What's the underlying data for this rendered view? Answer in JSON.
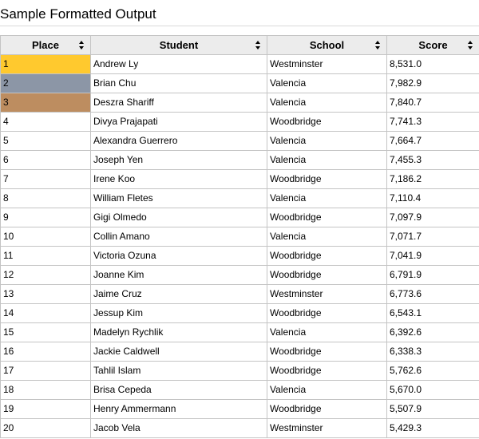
{
  "title": "Sample Formatted Output",
  "columns": [
    {
      "label": "Place"
    },
    {
      "label": "Student"
    },
    {
      "label": "School"
    },
    {
      "label": "Score"
    }
  ],
  "medal_colors": {
    "1": "#ffc92e",
    "2": "#8c96a6",
    "3": "#bd8d60"
  },
  "icons": {
    "sort": "sort-up-down-icon"
  },
  "rows": [
    {
      "place": "1",
      "student": "Andrew Ly",
      "school": "Westminster",
      "score": "8,531.0"
    },
    {
      "place": "2",
      "student": "Brian Chu",
      "school": "Valencia",
      "score": "7,982.9"
    },
    {
      "place": "3",
      "student": "Deszra Shariff",
      "school": "Valencia",
      "score": "7,840.7"
    },
    {
      "place": "4",
      "student": "Divya Prajapati",
      "school": "Woodbridge",
      "score": "7,741.3"
    },
    {
      "place": "5",
      "student": "Alexandra Guerrero",
      "school": "Valencia",
      "score": "7,664.7"
    },
    {
      "place": "6",
      "student": "Joseph Yen",
      "school": "Valencia",
      "score": "7,455.3"
    },
    {
      "place": "7",
      "student": "Irene Koo",
      "school": "Woodbridge",
      "score": "7,186.2"
    },
    {
      "place": "8",
      "student": "William Fletes",
      "school": "Valencia",
      "score": "7,110.4"
    },
    {
      "place": "9",
      "student": "Gigi Olmedo",
      "school": "Woodbridge",
      "score": "7,097.9"
    },
    {
      "place": "10",
      "student": "Collin Amano",
      "school": "Valencia",
      "score": "7,071.7"
    },
    {
      "place": "11",
      "student": "Victoria Ozuna",
      "school": "Woodbridge",
      "score": "7,041.9"
    },
    {
      "place": "12",
      "student": "Joanne Kim",
      "school": "Woodbridge",
      "score": "6,791.9"
    },
    {
      "place": "13",
      "student": "Jaime Cruz",
      "school": "Westminster",
      "score": "6,773.6"
    },
    {
      "place": "14",
      "student": "Jessup Kim",
      "school": "Woodbridge",
      "score": "6,543.1"
    },
    {
      "place": "15",
      "student": "Madelyn Rychlik",
      "school": "Valencia",
      "score": "6,392.6"
    },
    {
      "place": "16",
      "student": "Jackie Caldwell",
      "school": "Woodbridge",
      "score": "6,338.3"
    },
    {
      "place": "17",
      "student": "Tahlil Islam",
      "school": "Woodbridge",
      "score": "5,762.6"
    },
    {
      "place": "18",
      "student": "Brisa Cepeda",
      "school": "Valencia",
      "score": "5,670.0"
    },
    {
      "place": "19",
      "student": "Henry Ammermann",
      "school": "Woodbridge",
      "score": "5,507.9"
    },
    {
      "place": "20",
      "student": "Jacob Vela",
      "school": "Westminster",
      "score": "5,429.3"
    }
  ]
}
